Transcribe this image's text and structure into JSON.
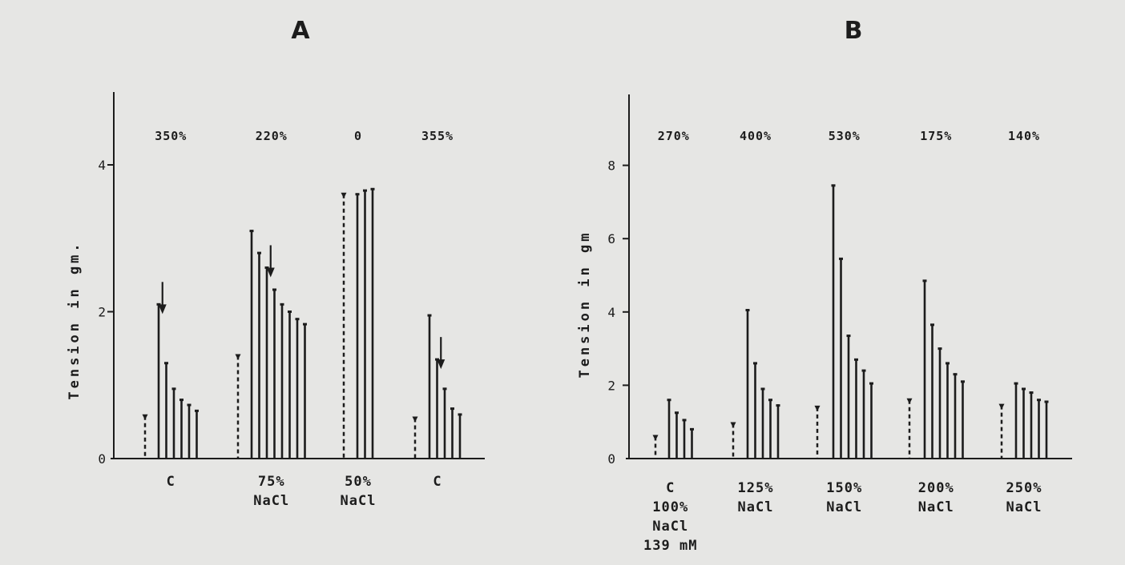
{
  "chart_data": [
    {
      "type": "bar",
      "panel": "A",
      "ylabel": "Tension in gm.",
      "ylim": [
        0,
        4.9
      ],
      "yticks": [
        0,
        2,
        4
      ],
      "groups": [
        {
          "percent": "350%",
          "label": [
            "C"
          ],
          "dotted": 0.58,
          "values": [
            2.1,
            1.3,
            0.95,
            0.8,
            0.73,
            0.65
          ],
          "arrow_before": 1
        },
        {
          "percent": "220%",
          "label": [
            "75%",
            "NaCl"
          ],
          "dotted": 1.4,
          "values": [
            3.1,
            2.8,
            2.6,
            2.3,
            2.1,
            2.0,
            1.9,
            1.83
          ],
          "arrow_before": 3
        },
        {
          "percent": "0",
          "label": [
            "50%",
            "NaCl"
          ],
          "dotted": 3.6,
          "values": [
            3.6,
            3.65,
            3.67
          ]
        },
        {
          "percent": "355%",
          "label": [
            "C"
          ],
          "dotted": 0.55,
          "values": [
            1.95,
            1.35,
            0.95,
            0.68,
            0.6
          ],
          "arrow_before": 2
        }
      ]
    },
    {
      "type": "bar",
      "panel": "B",
      "ylabel": "Tension in gm",
      "ylim": [
        0,
        8
      ],
      "yticks": [
        0,
        2,
        4,
        6,
        8
      ],
      "groups": [
        {
          "percent": "270%",
          "label": [
            "C",
            "100%",
            "NaCl",
            "139 mM"
          ],
          "dotted": 0.6,
          "values": [
            1.6,
            1.25,
            1.05,
            0.8
          ]
        },
        {
          "percent": "400%",
          "label": [
            "125%",
            "NaCl"
          ],
          "dotted": 0.95,
          "values": [
            4.05,
            2.6,
            1.9,
            1.6,
            1.45
          ]
        },
        {
          "percent": "530%",
          "label": [
            "150%",
            "NaCl"
          ],
          "dotted": 1.4,
          "values": [
            7.45,
            5.45,
            3.35,
            2.7,
            2.4,
            2.05
          ]
        },
        {
          "percent": "175%",
          "label": [
            "200%",
            "NaCl"
          ],
          "dotted": 1.6,
          "values": [
            4.85,
            3.65,
            3.0,
            2.6,
            2.3,
            2.1
          ]
        },
        {
          "percent": "140%",
          "label": [
            "250%",
            "NaCl"
          ],
          "dotted": 1.45,
          "values": [
            2.05,
            1.9,
            1.8,
            1.6,
            1.55
          ]
        }
      ]
    }
  ]
}
